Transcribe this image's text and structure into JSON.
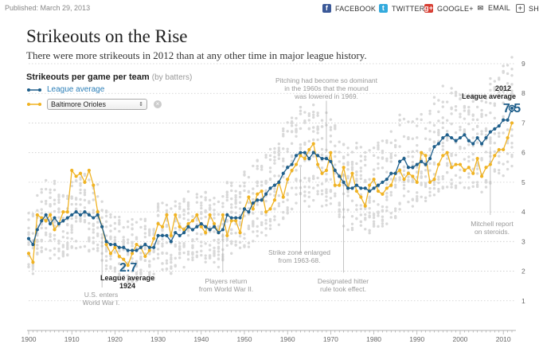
{
  "header": {
    "published": "Published: March 29, 2013",
    "share": [
      {
        "label": "FACEBOOK",
        "icon": "facebook-icon",
        "glyph": "f",
        "color": "#3b5998"
      },
      {
        "label": "TWITTER",
        "icon": "twitter-icon",
        "glyph": "t",
        "color": "#33aadd"
      },
      {
        "label": "GOOGLE+",
        "icon": "google-plus-icon",
        "glyph": "g+",
        "color": "#d73d32"
      },
      {
        "label": "EMAIL",
        "icon": "email-icon",
        "glyph": "✉",
        "color": "#666666"
      },
      {
        "label": "SHA",
        "icon": "share-plus-icon",
        "glyph": "+",
        "color": "#666666"
      }
    ]
  },
  "title": "Strikeouts on the Rise",
  "subtitle": "There were more strikeouts in 2012 than at any other time in major league history.",
  "chart_header": {
    "label": "Strikeouts per game per team",
    "sub": "(by batters)"
  },
  "legend": {
    "league_label": "League average",
    "team_selected": "Baltimore Orioles"
  },
  "colors": {
    "league": "#1f5f8b",
    "league_legend": "#2c7fb8",
    "team": "#f0b323",
    "teams": "#d9d9d9"
  },
  "chart_data": {
    "type": "line",
    "xlabel": "",
    "ylabel": "",
    "xlim": [
      1900,
      2012
    ],
    "ylim": [
      0,
      9
    ],
    "x_ticks": [
      1900,
      1910,
      1920,
      1930,
      1940,
      1950,
      1960,
      1970,
      1980,
      1990,
      2000,
      2010
    ],
    "y_ticks": [
      1,
      2,
      3,
      4,
      5,
      6,
      7,
      8,
      9
    ],
    "grid": true,
    "series": [
      {
        "name": "League average",
        "x": [
          1900,
          1901,
          1902,
          1903,
          1904,
          1905,
          1906,
          1907,
          1908,
          1909,
          1910,
          1911,
          1912,
          1913,
          1914,
          1915,
          1916,
          1917,
          1918,
          1919,
          1920,
          1921,
          1922,
          1923,
          1924,
          1925,
          1926,
          1927,
          1928,
          1929,
          1930,
          1931,
          1932,
          1933,
          1934,
          1935,
          1936,
          1937,
          1938,
          1939,
          1940,
          1941,
          1942,
          1943,
          1944,
          1945,
          1946,
          1947,
          1948,
          1949,
          1950,
          1951,
          1952,
          1953,
          1954,
          1955,
          1956,
          1957,
          1958,
          1959,
          1960,
          1961,
          1962,
          1963,
          1964,
          1965,
          1966,
          1967,
          1968,
          1969,
          1970,
          1971,
          1972,
          1973,
          1974,
          1975,
          1976,
          1977,
          1978,
          1979,
          1980,
          1981,
          1982,
          1983,
          1984,
          1985,
          1986,
          1987,
          1988,
          1989,
          1990,
          1991,
          1992,
          1993,
          1994,
          1995,
          1996,
          1997,
          1998,
          1999,
          2000,
          2001,
          2002,
          2003,
          2004,
          2005,
          2006,
          2007,
          2008,
          2009,
          2010,
          2011,
          2012
        ],
        "values": [
          3.1,
          2.9,
          3.4,
          3.7,
          3.9,
          3.6,
          3.8,
          3.6,
          3.7,
          3.8,
          3.9,
          4.0,
          3.9,
          4.0,
          3.9,
          3.8,
          3.9,
          3.5,
          3.0,
          2.9,
          2.9,
          2.8,
          2.8,
          2.7,
          2.7,
          2.7,
          2.8,
          2.9,
          2.8,
          2.8,
          3.2,
          3.2,
          3.2,
          3.0,
          3.3,
          3.2,
          3.3,
          3.5,
          3.4,
          3.5,
          3.6,
          3.5,
          3.4,
          3.5,
          3.3,
          3.4,
          3.9,
          3.8,
          3.8,
          3.8,
          4.1,
          4.0,
          4.3,
          4.4,
          4.4,
          4.6,
          4.8,
          4.9,
          5.0,
          5.3,
          5.5,
          5.6,
          5.9,
          6.0,
          6.0,
          5.8,
          6.0,
          5.9,
          5.8,
          5.8,
          5.7,
          5.4,
          5.2,
          5.0,
          4.8,
          4.8,
          4.9,
          4.8,
          4.8,
          4.7,
          4.8,
          4.9,
          5.0,
          5.1,
          5.3,
          5.3,
          5.7,
          5.8,
          5.5,
          5.5,
          5.6,
          5.7,
          5.6,
          5.8,
          6.2,
          6.3,
          6.5,
          6.6,
          6.5,
          6.4,
          6.5,
          6.6,
          6.4,
          6.3,
          6.5,
          6.3,
          6.5,
          6.7,
          6.8,
          6.9,
          7.1,
          7.1,
          7.5
        ]
      },
      {
        "name": "Baltimore Orioles",
        "x": [
          1900,
          1901,
          1902,
          1903,
          1904,
          1905,
          1906,
          1907,
          1908,
          1909,
          1910,
          1911,
          1912,
          1913,
          1914,
          1915,
          1916,
          1917,
          1918,
          1919,
          1920,
          1921,
          1922,
          1923,
          1924,
          1925,
          1926,
          1927,
          1928,
          1929,
          1930,
          1931,
          1932,
          1933,
          1934,
          1935,
          1936,
          1937,
          1938,
          1939,
          1940,
          1941,
          1942,
          1943,
          1944,
          1945,
          1946,
          1947,
          1948,
          1949,
          1950,
          1951,
          1952,
          1953,
          1954,
          1955,
          1956,
          1957,
          1958,
          1959,
          1960,
          1961,
          1962,
          1963,
          1964,
          1965,
          1966,
          1967,
          1968,
          1969,
          1970,
          1971,
          1972,
          1973,
          1974,
          1975,
          1976,
          1977,
          1978,
          1979,
          1980,
          1981,
          1982,
          1983,
          1984,
          1985,
          1986,
          1987,
          1988,
          1989,
          1990,
          1991,
          1992,
          1993,
          1994,
          1995,
          1996,
          1997,
          1998,
          1999,
          2000,
          2001,
          2002,
          2003,
          2004,
          2005,
          2006,
          2007,
          2008,
          2009,
          2010,
          2011,
          2012
        ],
        "values": [
          2.6,
          2.3,
          3.9,
          3.8,
          3.7,
          3.9,
          3.4,
          3.6,
          4.0,
          4.0,
          5.4,
          5.2,
          5.3,
          5.0,
          5.4,
          4.9,
          4.0,
          3.5,
          2.9,
          2.6,
          2.8,
          2.5,
          2.4,
          2.2,
          2.6,
          2.9,
          2.8,
          2.5,
          2.7,
          3.1,
          3.6,
          3.5,
          3.9,
          3.2,
          3.9,
          3.5,
          3.4,
          3.6,
          3.7,
          3.9,
          3.5,
          3.3,
          3.9,
          3.6,
          3.3,
          3.9,
          3.2,
          3.7,
          3.7,
          3.3,
          4.1,
          4.5,
          4.1,
          4.6,
          4.7,
          4.0,
          4.1,
          4.4,
          5.0,
          4.5,
          5.1,
          5.4,
          5.6,
          5.9,
          5.8,
          6.1,
          6.3,
          5.6,
          5.3,
          5.4,
          6.0,
          4.9,
          4.9,
          5.5,
          4.8,
          5.3,
          4.7,
          4.5,
          4.2,
          4.9,
          5.1,
          4.7,
          4.6,
          4.8,
          4.9,
          5.3,
          5.4,
          5.1,
          5.3,
          5.2,
          5.0,
          6.0,
          5.9,
          5.0,
          5.1,
          5.6,
          5.9,
          6.0,
          5.5,
          5.6,
          5.6,
          5.4,
          5.5,
          5.3,
          5.8,
          5.2,
          5.5,
          5.6,
          5.9,
          6.1,
          6.1,
          6.5,
          7.0
        ]
      }
    ],
    "callouts": {
      "low": {
        "value": "2.7",
        "label": "League average\n1924"
      },
      "high": {
        "label": "2012\nLeague average",
        "value": "7.5"
      }
    },
    "annotations": [
      {
        "id": "ww1",
        "text": "U.S. enters\nWorld War I.",
        "year": 1917
      },
      {
        "id": "ww2",
        "text": "Players return\nfrom World War II.",
        "year": 1945
      },
      {
        "id": "mound",
        "text": "Pitching had become so dominant\nin the 1960s that the mound\nwas lowered in 1969.",
        "year": 1969
      },
      {
        "id": "zone",
        "text": "Strike zone enlarged\nfrom 1963-68.",
        "year": 1963
      },
      {
        "id": "dh",
        "text": "Designated hitter\nrule took effect.",
        "year": 1973
      },
      {
        "id": "mitchell",
        "text": "Mitchell report\non steroids.",
        "year": 2007
      }
    ]
  }
}
